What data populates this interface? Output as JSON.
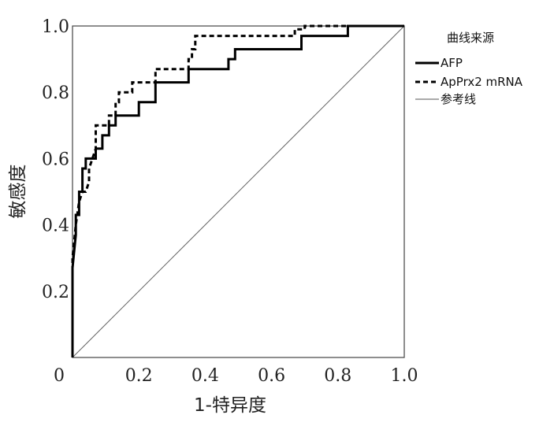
{
  "chart_data": {
    "type": "line",
    "xlabel": "1-特异度",
    "ylabel": "敏感度",
    "xlim": [
      0,
      1
    ],
    "ylim": [
      0,
      1
    ],
    "x_ticks": [
      "0",
      "0.2",
      "0.4",
      "0.6",
      "0.8",
      "1.0"
    ],
    "y_ticks": [
      "0.2",
      "0.4",
      "0.6",
      "0.8",
      "1.0"
    ],
    "grid": false,
    "legend": {
      "title": "曲线来源",
      "placement": "top-right"
    },
    "series": [
      {
        "name": "AFP",
        "style": "solid-thick",
        "x": [
          0,
          0,
          0.01,
          0.01,
          0.02,
          0.02,
          0.03,
          0.03,
          0.04,
          0.04,
          0.07,
          0.07,
          0.09,
          0.09,
          0.11,
          0.11,
          0.13,
          0.13,
          0.15,
          0.15,
          0.2,
          0.2,
          0.25,
          0.25,
          0.35,
          0.35,
          0.47,
          0.47,
          0.49,
          0.49,
          0.69,
          0.69,
          0.83,
          0.83,
          1.0
        ],
        "y": [
          0,
          0.27,
          0.37,
          0.43,
          0.43,
          0.5,
          0.5,
          0.57,
          0.57,
          0.6,
          0.6,
          0.63,
          0.63,
          0.67,
          0.67,
          0.7,
          0.7,
          0.73,
          0.73,
          0.73,
          0.73,
          0.77,
          0.77,
          0.83,
          0.83,
          0.87,
          0.87,
          0.9,
          0.9,
          0.93,
          0.93,
          0.97,
          0.97,
          1.0,
          1.0
        ]
      },
      {
        "name": "ApPrx2 mRNA",
        "style": "dashed-thick",
        "x": [
          0,
          0,
          0.01,
          0.02,
          0.03,
          0.04,
          0.05,
          0.05,
          0.06,
          0.07,
          0.07,
          0.11,
          0.11,
          0.13,
          0.13,
          0.14,
          0.14,
          0.16,
          0.16,
          0.18,
          0.18,
          0.21,
          0.21,
          0.25,
          0.25,
          0.35,
          0.35,
          0.36,
          0.36,
          0.37,
          0.37,
          0.67,
          0.67,
          0.7,
          0.7,
          1.0
        ],
        "y": [
          0,
          0.3,
          0.4,
          0.47,
          0.5,
          0.5,
          0.53,
          0.57,
          0.6,
          0.63,
          0.7,
          0.7,
          0.73,
          0.73,
          0.77,
          0.77,
          0.8,
          0.8,
          0.8,
          0.8,
          0.83,
          0.83,
          0.83,
          0.83,
          0.87,
          0.87,
          0.9,
          0.9,
          0.93,
          0.93,
          0.97,
          0.97,
          0.99,
          0.99,
          1.0,
          1.0
        ]
      },
      {
        "name": "参考线",
        "style": "solid-thin",
        "x": [
          0,
          1
        ],
        "y": [
          0,
          1
        ]
      }
    ]
  }
}
